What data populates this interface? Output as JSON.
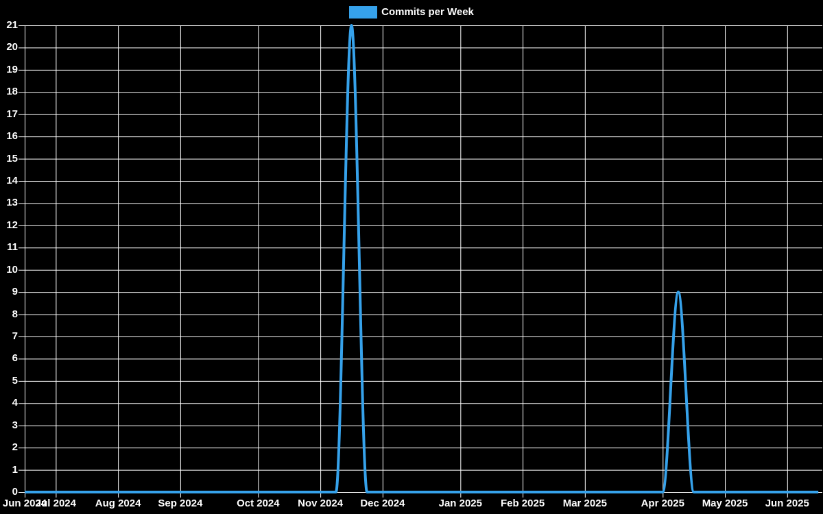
{
  "chart_data": {
    "type": "line",
    "legend_label": "Commits per Week",
    "colors": {
      "line": "#36a2eb",
      "background": "#000000",
      "grid": "#ffffff",
      "text": "#ffffff"
    },
    "y_min": 0,
    "y_max": 21,
    "y_step": 1,
    "y_tick_labels": [
      "0",
      "1",
      "2",
      "3",
      "4",
      "5",
      "6",
      "7",
      "8",
      "9",
      "10",
      "11",
      "12",
      "13",
      "14",
      "15",
      "16",
      "17",
      "18",
      "19",
      "20",
      "21"
    ],
    "x_tick_labels": [
      "Jun 2024",
      "Jul 2024",
      "Aug 2024",
      "Sep 2024",
      "Oct 2024",
      "Nov 2024",
      "Dec 2024",
      "Jan 2025",
      "Feb 2025",
      "Mar 2025",
      "Apr 2025",
      "May 2025",
      "Jun 2025"
    ],
    "x_tick_week_indices": [
      0,
      2,
      6,
      10,
      15,
      19,
      23,
      28,
      32,
      36,
      41,
      45,
      49
    ],
    "num_weeks": 52,
    "values": [
      0,
      0,
      0,
      0,
      0,
      0,
      0,
      0,
      0,
      0,
      0,
      0,
      0,
      0,
      0,
      0,
      0,
      0,
      0,
      0,
      0,
      21,
      0,
      0,
      0,
      0,
      0,
      0,
      0,
      0,
      0,
      0,
      0,
      0,
      0,
      0,
      0,
      0,
      0,
      0,
      0,
      0,
      9,
      0,
      0,
      0,
      0,
      0,
      0,
      0,
      0,
      0
    ],
    "peaks": [
      {
        "week_index": 21,
        "near_label": "Nov 2024",
        "value": 21
      },
      {
        "week_index": 42,
        "near_label": "Apr 2025",
        "value": 9
      }
    ],
    "grid": "on",
    "legend_position": "top-center"
  }
}
